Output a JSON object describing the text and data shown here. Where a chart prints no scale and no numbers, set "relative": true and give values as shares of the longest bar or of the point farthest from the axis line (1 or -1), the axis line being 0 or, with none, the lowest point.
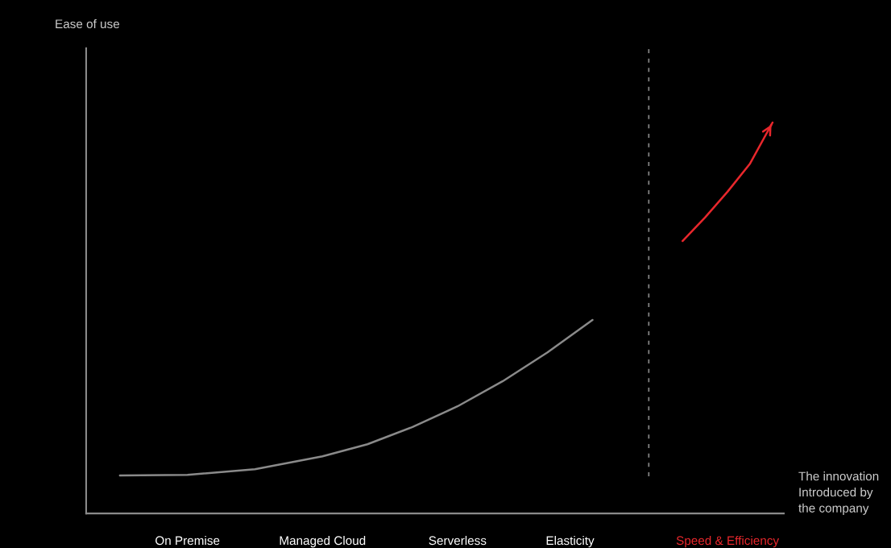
{
  "chart_data": {
    "type": "line",
    "relative": true,
    "annotations": [
      "Ease of use"
    ],
    "xlabel": "The innovation\nIntroduced by\nthe company",
    "categories": [
      null,
      null,
      null,
      null,
      "On Premise",
      null,
      null,
      null,
      null,
      null,
      "Managed Cloud",
      null,
      null,
      null,
      null,
      null,
      "Serverless",
      null,
      null,
      null,
      null,
      "Elasticity",
      null,
      null,
      null,
      null,
      null,
      null,
      "Speed & Efficiency",
      null,
      null
    ],
    "series": [
      {
        "color": "#8a8a8a",
        "values": [
          null,
          0.097,
          null,
          null,
          0.099,
          null,
          null,
          0.113,
          null,
          null,
          0.146,
          null,
          0.177,
          null,
          0.221,
          null,
          0.274,
          null,
          0.338,
          null,
          0.412,
          null,
          0.495,
          null,
          null,
          null,
          null,
          null,
          null,
          null,
          null
        ]
      },
      {
        "color": "#e8272c",
        "values": [
          null,
          null,
          null,
          null,
          null,
          null,
          null,
          null,
          null,
          null,
          null,
          null,
          null,
          null,
          null,
          null,
          null,
          null,
          null,
          null,
          null,
          null,
          null,
          null,
          null,
          null,
          0.697,
          0.757,
          0.823,
          0.895,
          1.0
        ]
      }
    ],
    "grid": false,
    "legend": false
  }
}
